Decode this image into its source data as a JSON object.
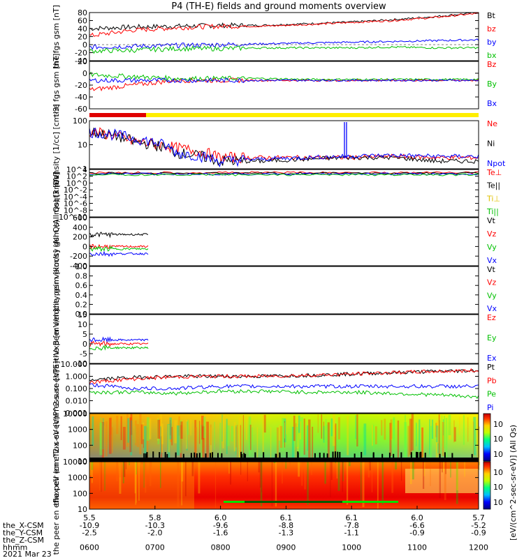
{
  "title": "P4 (TH-E) fields and ground moments overview",
  "footer": {
    "rows": [
      {
        "label": "the_X-CSM",
        "values": [
          "-10.9",
          "-10.3",
          "-9.6",
          "-8.8",
          "-7.8",
          "-6.6",
          "-5.2"
        ]
      },
      {
        "label": "the_Y-CSM",
        "values": [
          "-2.5",
          "-2.0",
          "-1.6",
          "-1.3",
          "-1.1",
          "-0.9",
          "-0.9"
        ]
      },
      {
        "label": "the_Z-CSM",
        "values": [
          "",
          "",
          "",
          "",
          "",
          "",
          ""
        ]
      },
      {
        "label": "hhmm",
        "values": [
          "0600",
          "0700",
          "0800",
          "0900",
          "1000",
          "1100",
          "1200"
        ]
      }
    ],
    "top_row": [
      "5.5",
      "5.8",
      "6.0",
      "6.1",
      "6.1",
      "6.0",
      "5.7"
    ],
    "date": "2021 Mar 23"
  },
  "colorbar": {
    "label": "[eV/(cm^2-sec-sr-eV)] (All Qs)",
    "ticks_top": [
      "10^6",
      "10^4",
      "10^2"
    ],
    "ticks_bottom": [
      "10^6",
      "10^4",
      "10^2"
    ]
  },
  "chart_data": [
    {
      "type": "line",
      "id": "p1",
      "ylabel": "the fgs gsm [nT]",
      "ylim": [
        -40,
        80
      ],
      "ticks": [
        "80",
        "60",
        "40",
        "20",
        "0",
        "-20",
        "-40"
      ],
      "series": [
        {
          "name": "Bt",
          "color": "#000000",
          "values": [
            40,
            44,
            46,
            48,
            48,
            52,
            56,
            62,
            70,
            80
          ]
        },
        {
          "name": "bz",
          "color": "#ff0000",
          "values": [
            22,
            36,
            42,
            46,
            46,
            50,
            55,
            60,
            68,
            78
          ]
        },
        {
          "name": "by",
          "color": "#0000ff",
          "values": [
            -6,
            -4,
            -2,
            0,
            2,
            4,
            6,
            8,
            10,
            12
          ]
        },
        {
          "name": "bx",
          "color": "#00c000",
          "values": [
            -16,
            -14,
            -10,
            -10,
            -8,
            -8,
            -8,
            -6,
            -8,
            -8
          ]
        }
      ]
    },
    {
      "type": "line",
      "id": "p2",
      "ylabel": "the fgs gsm [nT]",
      "ylim": [
        -60,
        40
      ],
      "ticks": [
        "20",
        "0",
        "-20",
        "-40",
        "-60"
      ],
      "series": [
        {
          "name": "Bz",
          "color": "#ff0000",
          "values": [
            -20,
            -10,
            0,
            0,
            0,
            0,
            0,
            0,
            0,
            0
          ]
        },
        {
          "name": "By",
          "color": "#00c000",
          "values": [
            12,
            8,
            4,
            4,
            4,
            2,
            2,
            2,
            2,
            2
          ]
        },
        {
          "name": "Bx",
          "color": "#0000ff",
          "values": [
            0,
            0,
            0,
            0,
            0,
            0,
            0,
            0,
            0,
            0
          ]
        }
      ]
    },
    {
      "type": "line",
      "id": "p3",
      "ylabel": "Density [1/cc] [cm-3]",
      "ylim": [
        0.1,
        100
      ],
      "scale": "log",
      "ticks": [
        "100",
        "10",
        "1"
      ],
      "series": [
        {
          "name": "Ne",
          "color": "#ff0000",
          "values": [
            20,
            5,
            2,
            0.5,
            0.5,
            0.5,
            0.5,
            0.6,
            0.5,
            0.5
          ]
        },
        {
          "name": "Ni",
          "color": "#000000",
          "values": [
            20,
            5,
            1,
            0.3,
            0.3,
            0.4,
            0.5,
            0.5,
            0.3,
            0.3
          ]
        },
        {
          "name": "Npot",
          "color": "#0000ff",
          "values": [
            20,
            8,
            1,
            0.3,
            0.4,
            0.5,
            0.6,
            0.7,
            0.6,
            0.6
          ]
        }
      ]
    },
    {
      "type": "line",
      "id": "p4",
      "ylabel": "moqt3 [eV]",
      "ylim": [
        1e-10,
        10000.0
      ],
      "scale": "log",
      "ticks": [
        "10^4",
        "10^2",
        "10^0",
        "10^-2",
        "10^-4",
        "10^-6",
        "10^-8",
        "10^-10"
      ],
      "series": [
        {
          "name": "Te⊥",
          "color": "#ff0000",
          "values": []
        },
        {
          "name": "Te||",
          "color": "#000000",
          "values": []
        },
        {
          "name": "Ti⊥",
          "color": "#e0c000",
          "values": []
        },
        {
          "name": "Ti||",
          "color": "#00c000",
          "values": []
        }
      ]
    },
    {
      "type": "line",
      "id": "p5",
      "ylabel": "the peir velocity gsm (All Qs) [km/s]",
      "ylim": [
        -400,
        600
      ],
      "ticks": [
        "600",
        "400",
        "200",
        "0",
        "-200",
        "-400"
      ],
      "series": [
        {
          "name": "Vt",
          "color": "#000000",
          "values": [
            250,
            250,
            250
          ]
        },
        {
          "name": "Vz",
          "color": "#ff0000",
          "values": [
            0,
            0,
            0
          ]
        },
        {
          "name": "Vy",
          "color": "#00c000",
          "values": [
            -50,
            -50,
            -50
          ]
        },
        {
          "name": "Vx",
          "color": "#0000ff",
          "values": [
            -150,
            -150,
            -150
          ]
        }
      ]
    },
    {
      "type": "line",
      "id": "p6",
      "ylabel": "the peer velocity gsm [km/s] (All Qs)",
      "ylim": [
        0,
        1
      ],
      "ticks": [
        "1.0",
        "0.8",
        "0.6",
        "0.4",
        "0.2",
        "0.0"
      ],
      "series": [
        {
          "name": "Vt",
          "color": "#000000",
          "values": []
        },
        {
          "name": "Vz",
          "color": "#ff0000",
          "values": []
        },
        {
          "name": "Vy",
          "color": "#00c000",
          "values": []
        },
        {
          "name": "Vx",
          "color": "#0000ff",
          "values": []
        }
      ]
    },
    {
      "type": "line",
      "id": "p7",
      "ylabel": "E=-VxB [mV/m]",
      "ylim": [
        -10,
        15
      ],
      "ticks": [
        "15",
        "10",
        "5",
        "0",
        "-5",
        "-10"
      ],
      "series": [
        {
          "name": "Ez",
          "color": "#ff0000",
          "values": [
            0,
            0,
            0
          ]
        },
        {
          "name": "Ey",
          "color": "#00c000",
          "values": [
            -2,
            -2,
            -2
          ]
        },
        {
          "name": "Ex",
          "color": "#0000ff",
          "values": [
            2,
            2,
            2
          ]
        }
      ]
    },
    {
      "type": "line",
      "id": "p8",
      "ylabel": "Pressure [nPa]",
      "ylim": [
        0.001,
        10
      ],
      "scale": "log",
      "ticks": [
        "10.000",
        "1.000",
        "0.100",
        "0.010",
        "0.001"
      ],
      "series": [
        {
          "name": "Pt",
          "color": "#000000",
          "values": [
            0.5,
            0.8,
            1,
            1,
            1,
            1.2,
            1.5,
            2,
            2.5,
            3
          ]
        },
        {
          "name": "Pb",
          "color": "#ff0000",
          "values": [
            0.3,
            0.6,
            0.9,
            1,
            1,
            1.2,
            1.5,
            2,
            2.5,
            3
          ]
        },
        {
          "name": "Pe",
          "color": "#00c000",
          "values": [
            0.05,
            0.05,
            0.04,
            0.06,
            0.06,
            0.05,
            0.05,
            0.04,
            0.03,
            0.02
          ]
        },
        {
          "name": "Pi",
          "color": "#0000ff",
          "values": [
            0.2,
            0.1,
            0.1,
            0.15,
            0.15,
            0.15,
            0.15,
            0.15,
            0.15,
            0.15
          ]
        }
      ]
    },
    {
      "type": "heatmap",
      "id": "p9",
      "ylabel": "the peir en eflux eV (cm^2-s-sr-eV)",
      "ylim": [
        5,
        20000
      ],
      "scale": "log",
      "ticks": [
        "10000",
        "1000",
        "100",
        "10"
      ]
    },
    {
      "type": "heatmap",
      "id": "p10",
      "ylabel": "the peer en eflux eV (cm^2-s-sr-eV)",
      "ylim": [
        5,
        20000
      ],
      "scale": "log",
      "ticks": [
        "10000",
        "1000",
        "100",
        "10"
      ]
    }
  ]
}
